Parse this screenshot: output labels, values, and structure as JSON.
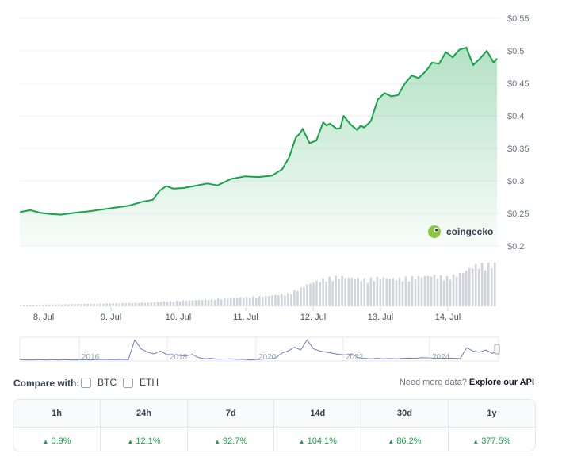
{
  "chart_data": {
    "type": "area",
    "price_axis": {
      "ticks": [
        0.2,
        0.25,
        0.3,
        0.35,
        0.4,
        0.45,
        0.5,
        0.55
      ],
      "labels": [
        "$0.2",
        "$0.25",
        "$0.3",
        "$0.35",
        "$0.4",
        "$0.45",
        "$0.5",
        "$0.55"
      ],
      "ylim": [
        0.2,
        0.55
      ]
    },
    "x_labels": [
      "8. Jul",
      "9. Jul",
      "10. Jul",
      "11. Jul",
      "12. Jul",
      "13. Jul",
      "14. Jul"
    ],
    "price_series": {
      "name": "Price (USD)",
      "color": "#16a34a",
      "x_days": [
        0.0,
        0.15,
        0.3,
        0.45,
        0.6,
        0.8,
        1.0,
        1.2,
        1.4,
        1.6,
        1.8,
        1.95,
        2.05,
        2.15,
        2.25,
        2.4,
        2.55,
        2.75,
        2.9,
        3.1,
        3.3,
        3.5,
        3.7,
        3.85,
        3.95,
        4.05,
        4.1,
        4.15,
        4.25,
        4.35,
        4.45,
        4.5,
        4.55,
        4.65,
        4.7,
        4.75,
        4.85,
        4.95,
        5.0,
        5.05,
        5.15,
        5.25,
        5.35,
        5.45,
        5.55,
        5.65,
        5.75,
        5.85,
        5.95,
        6.05,
        6.15,
        6.25,
        6.35,
        6.45,
        6.55,
        6.65,
        6.75,
        6.85,
        6.95,
        7.0
      ],
      "values": [
        0.252,
        0.255,
        0.251,
        0.249,
        0.248,
        0.251,
        0.253,
        0.256,
        0.259,
        0.262,
        0.268,
        0.271,
        0.285,
        0.292,
        0.288,
        0.289,
        0.292,
        0.296,
        0.293,
        0.303,
        0.307,
        0.306,
        0.308,
        0.318,
        0.336,
        0.367,
        0.372,
        0.38,
        0.358,
        0.362,
        0.39,
        0.385,
        0.388,
        0.38,
        0.381,
        0.4,
        0.387,
        0.378,
        0.385,
        0.382,
        0.392,
        0.425,
        0.435,
        0.43,
        0.432,
        0.45,
        0.462,
        0.458,
        0.468,
        0.482,
        0.48,
        0.498,
        0.49,
        0.502,
        0.505,
        0.478,
        0.488,
        0.5,
        0.482,
        0.488
      ]
    },
    "volume_series": {
      "name": "Volume",
      "color": "#d1d5db",
      "x_days": [
        0.0,
        0.5,
        1.0,
        1.5,
        1.9,
        2.1,
        2.4,
        2.8,
        3.2,
        3.6,
        3.95,
        4.1,
        4.3,
        4.5,
        4.7,
        4.9,
        5.1,
        5.3,
        5.5,
        5.7,
        5.9,
        6.1,
        6.3,
        6.5,
        6.7,
        7.0
      ],
      "values": [
        5,
        6,
        8,
        10,
        12,
        15,
        18,
        22,
        27,
        32,
        40,
        55,
        75,
        88,
        95,
        90,
        85,
        92,
        88,
        90,
        95,
        98,
        92,
        105,
        130,
        135
      ]
    },
    "navigator": {
      "year_labels": [
        "2016",
        "2018",
        "2020",
        "2022",
        "2024"
      ],
      "color": "#6b7fbf"
    }
  },
  "brand": {
    "name": "coingecko"
  },
  "compare": {
    "label": "Compare with:",
    "options": [
      "BTC",
      "ETH"
    ]
  },
  "api": {
    "prefix": "Need more data?",
    "link": "Explore our API"
  },
  "performance": {
    "periods": [
      "1h",
      "24h",
      "7d",
      "14d",
      "30d",
      "1y"
    ],
    "changes": [
      "0.9%",
      "12.1%",
      "92.7%",
      "104.1%",
      "86.2%",
      "377.5%"
    ],
    "positive_color": "#16a34a"
  }
}
